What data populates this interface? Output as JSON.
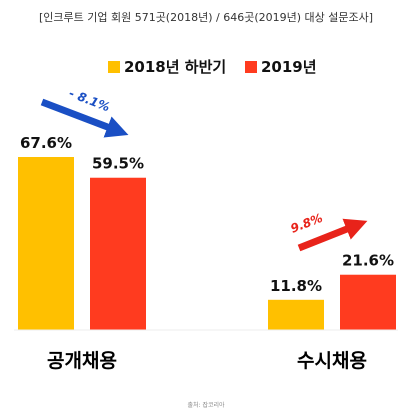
{
  "subtitle": "[인크루트 기업 회원 571곳(2018년) / 646곳(2019년) 대상 설문조사]",
  "source_note": "출처: 잡코리아",
  "chart_data": {
    "type": "bar",
    "categories": [
      "공개채용",
      "수시채용"
    ],
    "series": [
      {
        "name": "2018년 하반기",
        "color": "#FFC000",
        "values": [
          67.6,
          11.8
        ],
        "labels": [
          "67.6%",
          "11.8%"
        ]
      },
      {
        "name": "2019년",
        "color": "#FF3B1F",
        "values": [
          59.5,
          21.6
        ],
        "labels": [
          "59.5%",
          "21.6%"
        ]
      }
    ],
    "changes": [
      {
        "category": "공개채용",
        "label": "- 8.1%",
        "color": "#1A4FC4",
        "direction": "down"
      },
      {
        "category": "수시채용",
        "label": "9.8%",
        "color": "#E8231A",
        "direction": "up"
      }
    ],
    "ylim": [
      0,
      70
    ],
    "grid": false,
    "legend": "top-right"
  }
}
